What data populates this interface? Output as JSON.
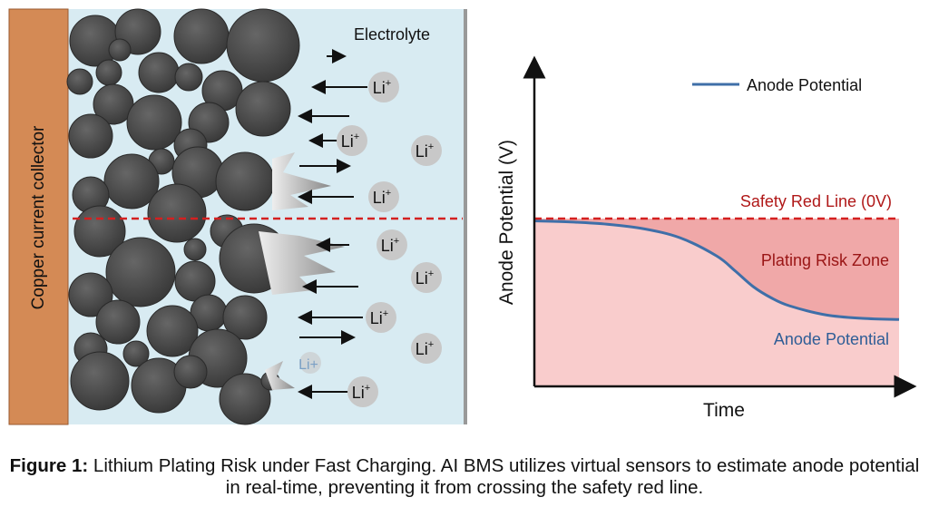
{
  "diagram": {
    "collector_label": "Copper current collector",
    "electrolyte_label": "Electrolyte",
    "ion_text": "Li",
    "ion_charge": "+",
    "colors": {
      "collector": "#d48a55",
      "electrolyte": "#d8ebf2",
      "particle": "#4a4a4a",
      "ion": "#c8c8c8",
      "red_line": "#d42020"
    }
  },
  "chart_data": {
    "type": "area",
    "xlabel": "Time",
    "ylabel": "Anode Potential (V)",
    "legend": {
      "entries": [
        "Anode Potential"
      ],
      "placement": "top-right"
    },
    "grid": false,
    "reference_line": {
      "label": "Safety Red Line (0V)",
      "value": 0,
      "style": "dashed",
      "color": "#d42020"
    },
    "zone_label": "Plating Risk Zone",
    "series": [
      {
        "name": "Anode Potential",
        "color": "#3f6fa8",
        "x": [
          0,
          0.1,
          0.2,
          0.3,
          0.4,
          0.5,
          0.55,
          0.6,
          0.65,
          0.7,
          0.8,
          0.9,
          1.0
        ],
        "y": [
          -0.02,
          -0.03,
          -0.05,
          -0.09,
          -0.17,
          -0.33,
          -0.46,
          -0.6,
          -0.7,
          -0.77,
          -0.85,
          -0.88,
          -0.89
        ]
      }
    ],
    "series_label": "Anode Potential",
    "colors": {
      "zone_light": "#f9cccc",
      "zone_dark": "#f0a8a8"
    }
  },
  "caption": {
    "label": "Figure 1:",
    "text": " Lithium Plating Risk under Fast Charging. AI BMS utilizes virtual sensors to estimate anode potential in real-time, preventing it from crossing the safety red line."
  }
}
